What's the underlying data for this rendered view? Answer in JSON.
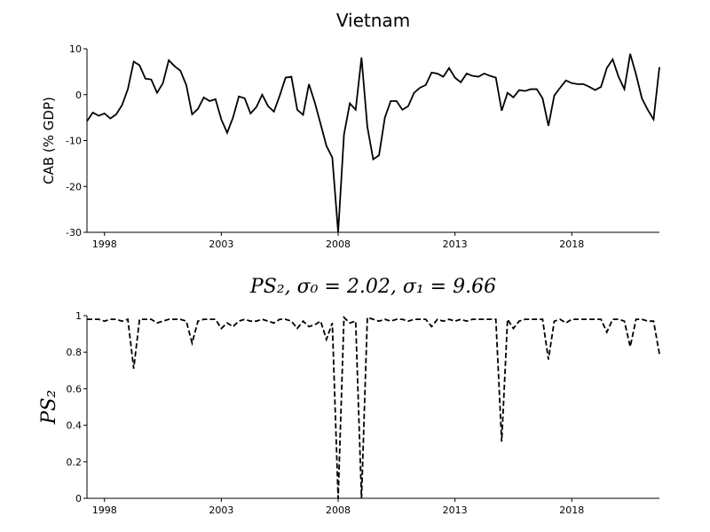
{
  "chart_data": [
    {
      "type": "line",
      "title": "Vietnam",
      "ylabel": "CAB (% GDP)",
      "x": [
        1997.25,
        1997.5,
        1997.75,
        1998,
        1998.25,
        1998.5,
        1998.75,
        1999,
        1999.25,
        1999.5,
        1999.75,
        2000,
        2000.25,
        2000.5,
        2000.75,
        2001,
        2001.25,
        2001.5,
        2001.75,
        2002,
        2002.25,
        2002.5,
        2002.75,
        2003,
        2003.25,
        2003.5,
        2003.75,
        2004,
        2004.25,
        2004.5,
        2004.75,
        2005,
        2005.25,
        2005.5,
        2005.75,
        2006,
        2006.25,
        2006.5,
        2006.75,
        2007,
        2007.25,
        2007.5,
        2007.75,
        2008,
        2008.25,
        2008.5,
        2008.75,
        2009,
        2009.25,
        2009.5,
        2009.75,
        2010,
        2010.25,
        2010.5,
        2010.75,
        2011,
        2011.25,
        2011.5,
        2011.75,
        2012,
        2012.25,
        2012.5,
        2012.75,
        2013,
        2013.25,
        2013.5,
        2013.75,
        2014,
        2014.25,
        2014.5,
        2014.75,
        2015,
        2015.25,
        2015.5,
        2015.75,
        2016,
        2016.25,
        2016.5,
        2016.75,
        2017,
        2017.25,
        2017.5,
        2017.75,
        2018,
        2018.25,
        2018.5,
        2018.75,
        2019,
        2019.25,
        2019.5,
        2019.75,
        2020,
        2020.25,
        2020.5,
        2020.75,
        2021,
        2021.25,
        2021.5,
        2021.75
      ],
      "series": [
        {
          "color": "#000000",
          "linestyle": "solid",
          "values": [
            -5.8,
            -3.9,
            -4.6,
            -4.1,
            -5.2,
            -4.3,
            -2.3,
            1.2,
            7.2,
            6.4,
            3.5,
            3.3,
            0.4,
            2.5,
            7.5,
            6.2,
            5.2,
            2.1,
            -4.3,
            -3.1,
            -0.6,
            -1.4,
            -1.0,
            -5.4,
            -8.3,
            -5.0,
            -0.4,
            -0.8,
            -4.1,
            -2.7,
            0,
            -2.5,
            -3.7,
            -0.2,
            3.7,
            3.9,
            -3.3,
            -4.4,
            2.3,
            -1.7,
            -6.4,
            -11.2,
            -13.7,
            -30,
            -8.7,
            -1.9,
            -3.3,
            8.1,
            -7.0,
            -14.1,
            -13.2,
            -5.0,
            -1.4,
            -1.4,
            -3.3,
            -2.5,
            0.4,
            1.5,
            2.1,
            4.8,
            4.6,
            3.9,
            5.8,
            3.7,
            2.7,
            4.6,
            4.1,
            3.9,
            4.6,
            4.1,
            3.7,
            -3.5,
            0.4,
            -0.6,
            1.0,
            0.8,
            1.2,
            1.2,
            -0.8,
            -6.8,
            -0.2,
            1.5,
            3.1,
            2.5,
            2.3,
            2.3,
            1.7,
            1.0,
            1.7,
            5.8,
            7.7,
            3.9,
            1.2,
            8.9,
            4.4,
            -0.8,
            -3.3,
            -5.4,
            6.0
          ]
        }
      ],
      "xlim": [
        1997.25,
        2021.75
      ],
      "xticks": [
        1998,
        2003,
        2008,
        2013,
        2018
      ],
      "ylim": [
        -30,
        10
      ],
      "yticks": [
        -30,
        -20,
        -10,
        0,
        10
      ]
    },
    {
      "type": "line",
      "title": "PS₂, σ₀ = 2.02, σ₁ = 9.66",
      "ylabel": "PS₂",
      "x": [
        1997.25,
        1997.5,
        1997.75,
        1998,
        1998.25,
        1998.5,
        1998.75,
        1999,
        1999.25,
        1999.5,
        1999.75,
        2000,
        2000.25,
        2000.5,
        2000.75,
        2001,
        2001.25,
        2001.5,
        2001.75,
        2002,
        2002.25,
        2002.5,
        2002.75,
        2003,
        2003.25,
        2003.5,
        2003.75,
        2004,
        2004.25,
        2004.5,
        2004.75,
        2005,
        2005.25,
        2005.5,
        2005.75,
        2006,
        2006.25,
        2006.5,
        2006.75,
        2007,
        2007.25,
        2007.5,
        2007.75,
        2008,
        2008.25,
        2008.5,
        2008.75,
        2009,
        2009.25,
        2009.5,
        2009.75,
        2010,
        2010.25,
        2010.5,
        2010.75,
        2011,
        2011.25,
        2011.5,
        2011.75,
        2012,
        2012.25,
        2012.5,
        2012.75,
        2013,
        2013.25,
        2013.5,
        2013.75,
        2014,
        2014.25,
        2014.5,
        2014.75,
        2015,
        2015.25,
        2015.5,
        2015.75,
        2016,
        2016.25,
        2016.5,
        2016.75,
        2017,
        2017.25,
        2017.5,
        2017.75,
        2018,
        2018.25,
        2018.5,
        2018.75,
        2019,
        2019.25,
        2019.5,
        2019.75,
        2020,
        2020.25,
        2020.5,
        2020.75,
        2021,
        2021.25,
        2021.5,
        2021.75
      ],
      "series": [
        {
          "color": "#000000",
          "linestyle": "dashed",
          "values": [
            0.98,
            0.98,
            0.98,
            0.97,
            0.98,
            0.98,
            0.97,
            0.98,
            0.71,
            0.98,
            0.98,
            0.98,
            0.96,
            0.97,
            0.98,
            0.98,
            0.98,
            0.97,
            0.85,
            0.97,
            0.98,
            0.98,
            0.98,
            0.93,
            0.96,
            0.94,
            0.97,
            0.98,
            0.97,
            0.97,
            0.98,
            0.97,
            0.96,
            0.98,
            0.98,
            0.97,
            0.93,
            0.97,
            0.94,
            0.95,
            0.97,
            0.87,
            0.96,
            0,
            0.99,
            0.96,
            0.97,
            0,
            0.99,
            0.98,
            0.97,
            0.98,
            0.97,
            0.98,
            0.98,
            0.97,
            0.98,
            0.98,
            0.98,
            0.94,
            0.98,
            0.97,
            0.98,
            0.97,
            0.98,
            0.97,
            0.98,
            0.98,
            0.98,
            0.98,
            0.98,
            0.31,
            0.98,
            0.93,
            0.97,
            0.98,
            0.98,
            0.98,
            0.98,
            0.76,
            0.97,
            0.98,
            0.96,
            0.98,
            0.98,
            0.98,
            0.98,
            0.98,
            0.98,
            0.91,
            0.98,
            0.98,
            0.97,
            0.83,
            0.98,
            0.98,
            0.97,
            0.97,
            0.79
          ]
        }
      ],
      "xlim": [
        1997.25,
        2021.75
      ],
      "xticks": [
        1998,
        2003,
        2008,
        2013,
        2018
      ],
      "ylim": [
        0,
        1
      ],
      "yticks": [
        0,
        0.2,
        0.4,
        0.6,
        0.8,
        1
      ]
    }
  ]
}
